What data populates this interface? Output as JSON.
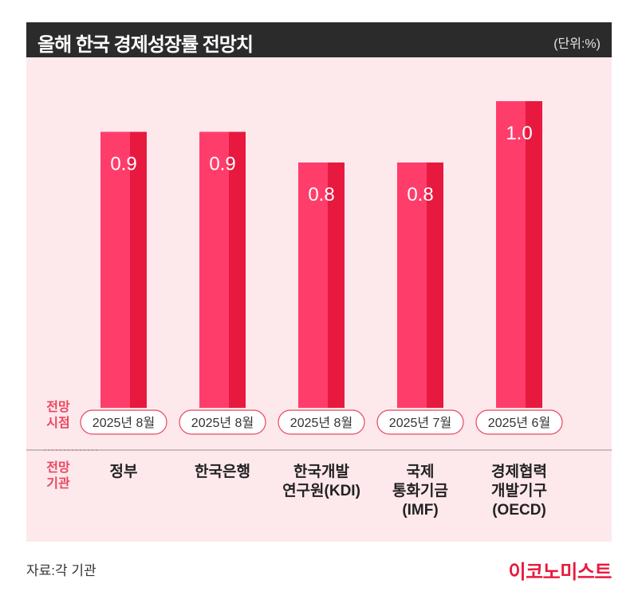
{
  "header": {
    "title": "올해 한국 경제성장률 전망치",
    "unit": "(단위:%)"
  },
  "labels": {
    "date_line1": "전망",
    "date_line2": "시점",
    "org_line1": "전망",
    "org_line2": "기관"
  },
  "footer": {
    "source": "자료:각 기관",
    "logo": "이코노미스트"
  },
  "colors": {
    "bar_light": "#ff3d6b",
    "bar_dark": "#e8193f",
    "accent": "#e8475f",
    "panel": "#fde8ec"
  },
  "chart_data": {
    "type": "bar",
    "title": "올해 한국 경제성장률 전망치",
    "unit": "(단위:%)",
    "categories": [
      [
        "정부"
      ],
      [
        "한국은행"
      ],
      [
        "한국개발",
        "연구원(KDI)"
      ],
      [
        "국제",
        "통화기금",
        "(IMF)"
      ],
      [
        "경제협력",
        "개발기구",
        "(OECD)"
      ]
    ],
    "values": [
      0.9,
      0.9,
      0.8,
      0.8,
      1.0
    ],
    "value_labels": [
      "0.9",
      "0.9",
      "0.8",
      "0.8",
      "1.0"
    ],
    "dates": [
      "2025년 8월",
      "2025년 8월",
      "2025년 8월",
      "2025년 7월",
      "2025년 6월"
    ]
  }
}
